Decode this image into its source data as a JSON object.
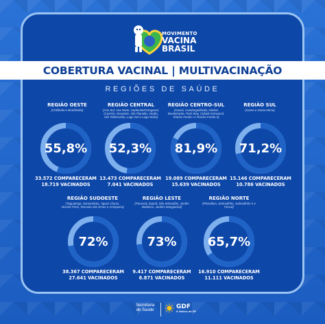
{
  "brand": {
    "line1": "MOVIMENTO",
    "line2": "VACINA",
    "line3": "BRASIL"
  },
  "title": "COBERTURA VACINAL | MULTIVACINAÇÃO",
  "subtitle": "REGIÕES DE SAÚDE",
  "regions": [
    {
      "name": "REGIÃO OESTE",
      "areas": "(Chilândia e Brazlândia)",
      "coverage": "55,8%",
      "coverage_value": 55.8,
      "attended": "33.572 COMPARECERAM",
      "vaccinated": "18.719 VACINADOS"
    },
    {
      "name": "REGIÃO CENTRAL",
      "areas": "(Asa Sul, Asa Norte, Sudoeste/Octogonal, Cruzeiro, Noroeste, Vila Planalto, Varjão, Vila Telebrasília, Lago Sul e Lago Norte)",
      "coverage": "52,3%",
      "coverage_value": 52.3,
      "attended": "13.473 COMPARECERAM",
      "vaccinated": "7.041 VACINADOS"
    },
    {
      "name": "REGIÃO CENTRO-SUL",
      "areas": "(Guará, Candangolândia, Núcleo Bandeirante, Park Way, Cidade Estrutural, Riacho Fundo I e Riacho Fundo II)",
      "coverage": "81,9%",
      "coverage_value": 81.9,
      "attended": "19.089 COMPARECERAM",
      "vaccinated": "15.639 VACINADOS"
    },
    {
      "name": "REGIÃO SUL",
      "areas": "(Gama e Santa Maria)",
      "coverage": "71,2%",
      "coverage_value": 71.2,
      "attended": "15.146 COMPARECERAM",
      "vaccinated": "10.786 VACINADOS"
    },
    {
      "name": "REGIÃO SUDOESTE",
      "areas": "(Taguatinga, Samambaia, Águas Claras, Vicente Pires, Recanto das Emas e Arniqueira)",
      "coverage": "72%",
      "coverage_value": 72,
      "attended": "38.367 COMPARECERAM",
      "vaccinated": "27.641 VACINADOS"
    },
    {
      "name": "REGIÃO LESTE",
      "areas": "(Paranoá, Itapoã, São Sebastião, Jardim Botânico, Jardins Mangueiral)",
      "coverage": "73%",
      "coverage_value": 73,
      "attended": "9.417 COMPARECERAM",
      "vaccinated": "6.871 VACINADOS"
    },
    {
      "name": "REGIÃO NORTE",
      "areas": "(Planaltina, Sobradinho, Sobradinho II e Fercal)",
      "coverage": "65,7%",
      "coverage_value": 65.7,
      "attended": "16.910 COMPARECERAM",
      "vaccinated": "11.111 VACINADOS"
    }
  ],
  "footer": {
    "sec_line1": "Secretaria",
    "sec_line2": "de Saúde",
    "gdf": "GDF",
    "gdf_sub": "O futuro do DF"
  },
  "colors": {
    "ring_track": "#7fb0ee",
    "ring_fill": "#1f63c7",
    "card_bg": "#0d47a8",
    "title_text": "#0d3f96"
  }
}
